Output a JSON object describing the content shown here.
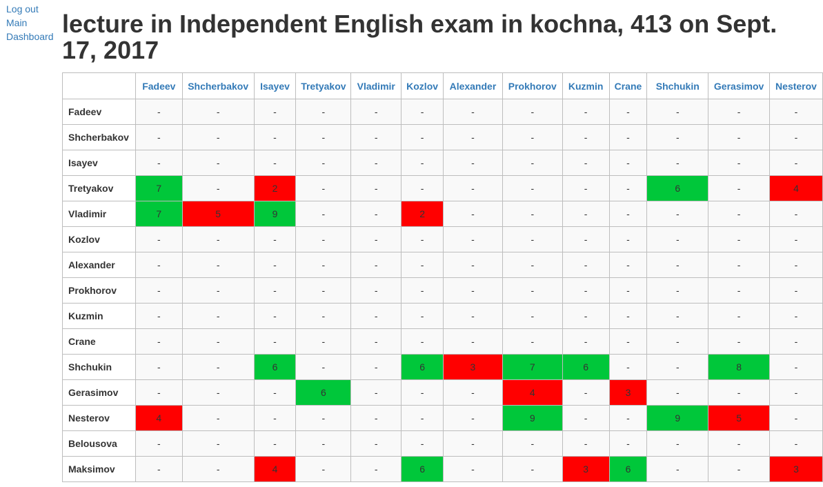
{
  "nav": {
    "logout": "Log out",
    "main": "Main",
    "dashboard": "Dashboard"
  },
  "page_title": "lecture in Independent English exam in kochna, 413 on Sept. 17, 2017",
  "colors": {
    "positive": "#00c73a",
    "negative": "#ff0000",
    "link": "#337ab7"
  },
  "columns": [
    "Fadeev",
    "Shcherbakov",
    "Isayev",
    "Tretyakov",
    "Vladimir",
    "Kozlov",
    "Alexander",
    "Prokhorov",
    "Kuzmin",
    "Crane",
    "Shchukin",
    "Gerasimov",
    "Nesterov"
  ],
  "rows": [
    {
      "name": "Fadeev",
      "cells": [
        {
          "v": "-"
        },
        {
          "v": "-"
        },
        {
          "v": "-"
        },
        {
          "v": "-"
        },
        {
          "v": "-"
        },
        {
          "v": "-"
        },
        {
          "v": "-"
        },
        {
          "v": "-"
        },
        {
          "v": "-"
        },
        {
          "v": "-"
        },
        {
          "v": "-"
        },
        {
          "v": "-"
        },
        {
          "v": "-"
        }
      ]
    },
    {
      "name": "Shcherbakov",
      "cells": [
        {
          "v": "-"
        },
        {
          "v": "-"
        },
        {
          "v": "-"
        },
        {
          "v": "-"
        },
        {
          "v": "-"
        },
        {
          "v": "-"
        },
        {
          "v": "-"
        },
        {
          "v": "-"
        },
        {
          "v": "-"
        },
        {
          "v": "-"
        },
        {
          "v": "-"
        },
        {
          "v": "-"
        },
        {
          "v": "-"
        }
      ]
    },
    {
      "name": "Isayev",
      "cells": [
        {
          "v": "-"
        },
        {
          "v": "-"
        },
        {
          "v": "-"
        },
        {
          "v": "-"
        },
        {
          "v": "-"
        },
        {
          "v": "-"
        },
        {
          "v": "-"
        },
        {
          "v": "-"
        },
        {
          "v": "-"
        },
        {
          "v": "-"
        },
        {
          "v": "-"
        },
        {
          "v": "-"
        },
        {
          "v": "-"
        }
      ]
    },
    {
      "name": "Tretyakov",
      "cells": [
        {
          "v": "7",
          "s": "green"
        },
        {
          "v": "-"
        },
        {
          "v": "2",
          "s": "red"
        },
        {
          "v": "-"
        },
        {
          "v": "-"
        },
        {
          "v": "-"
        },
        {
          "v": "-"
        },
        {
          "v": "-"
        },
        {
          "v": "-"
        },
        {
          "v": "-"
        },
        {
          "v": "6",
          "s": "green"
        },
        {
          "v": "-"
        },
        {
          "v": "4",
          "s": "red"
        }
      ]
    },
    {
      "name": "Vladimir",
      "cells": [
        {
          "v": "7",
          "s": "green"
        },
        {
          "v": "5",
          "s": "red"
        },
        {
          "v": "9",
          "s": "green"
        },
        {
          "v": "-"
        },
        {
          "v": "-"
        },
        {
          "v": "2",
          "s": "red"
        },
        {
          "v": "-"
        },
        {
          "v": "-"
        },
        {
          "v": "-"
        },
        {
          "v": "-"
        },
        {
          "v": "-"
        },
        {
          "v": "-"
        },
        {
          "v": "-"
        }
      ]
    },
    {
      "name": "Kozlov",
      "cells": [
        {
          "v": "-"
        },
        {
          "v": "-"
        },
        {
          "v": "-"
        },
        {
          "v": "-"
        },
        {
          "v": "-"
        },
        {
          "v": "-"
        },
        {
          "v": "-"
        },
        {
          "v": "-"
        },
        {
          "v": "-"
        },
        {
          "v": "-"
        },
        {
          "v": "-"
        },
        {
          "v": "-"
        },
        {
          "v": "-"
        }
      ]
    },
    {
      "name": "Alexander",
      "cells": [
        {
          "v": "-"
        },
        {
          "v": "-"
        },
        {
          "v": "-"
        },
        {
          "v": "-"
        },
        {
          "v": "-"
        },
        {
          "v": "-"
        },
        {
          "v": "-"
        },
        {
          "v": "-"
        },
        {
          "v": "-"
        },
        {
          "v": "-"
        },
        {
          "v": "-"
        },
        {
          "v": "-"
        },
        {
          "v": "-"
        }
      ]
    },
    {
      "name": "Prokhorov",
      "cells": [
        {
          "v": "-"
        },
        {
          "v": "-"
        },
        {
          "v": "-"
        },
        {
          "v": "-"
        },
        {
          "v": "-"
        },
        {
          "v": "-"
        },
        {
          "v": "-"
        },
        {
          "v": "-"
        },
        {
          "v": "-"
        },
        {
          "v": "-"
        },
        {
          "v": "-"
        },
        {
          "v": "-"
        },
        {
          "v": "-"
        }
      ]
    },
    {
      "name": "Kuzmin",
      "cells": [
        {
          "v": "-"
        },
        {
          "v": "-"
        },
        {
          "v": "-"
        },
        {
          "v": "-"
        },
        {
          "v": "-"
        },
        {
          "v": "-"
        },
        {
          "v": "-"
        },
        {
          "v": "-"
        },
        {
          "v": "-"
        },
        {
          "v": "-"
        },
        {
          "v": "-"
        },
        {
          "v": "-"
        },
        {
          "v": "-"
        }
      ]
    },
    {
      "name": "Crane",
      "cells": [
        {
          "v": "-"
        },
        {
          "v": "-"
        },
        {
          "v": "-"
        },
        {
          "v": "-"
        },
        {
          "v": "-"
        },
        {
          "v": "-"
        },
        {
          "v": "-"
        },
        {
          "v": "-"
        },
        {
          "v": "-"
        },
        {
          "v": "-"
        },
        {
          "v": "-"
        },
        {
          "v": "-"
        },
        {
          "v": "-"
        }
      ]
    },
    {
      "name": "Shchukin",
      "cells": [
        {
          "v": "-"
        },
        {
          "v": "-"
        },
        {
          "v": "6",
          "s": "green"
        },
        {
          "v": "-"
        },
        {
          "v": "-"
        },
        {
          "v": "6",
          "s": "green"
        },
        {
          "v": "3",
          "s": "red"
        },
        {
          "v": "7",
          "s": "green"
        },
        {
          "v": "6",
          "s": "green"
        },
        {
          "v": "-"
        },
        {
          "v": "-"
        },
        {
          "v": "8",
          "s": "green"
        },
        {
          "v": "-"
        }
      ]
    },
    {
      "name": "Gerasimov",
      "cells": [
        {
          "v": "-"
        },
        {
          "v": "-"
        },
        {
          "v": "-"
        },
        {
          "v": "6",
          "s": "green"
        },
        {
          "v": "-"
        },
        {
          "v": "-"
        },
        {
          "v": "-"
        },
        {
          "v": "4",
          "s": "red"
        },
        {
          "v": "-"
        },
        {
          "v": "3",
          "s": "red"
        },
        {
          "v": "-"
        },
        {
          "v": "-"
        },
        {
          "v": "-"
        }
      ]
    },
    {
      "name": "Nesterov",
      "cells": [
        {
          "v": "4",
          "s": "red"
        },
        {
          "v": "-"
        },
        {
          "v": "-"
        },
        {
          "v": "-"
        },
        {
          "v": "-"
        },
        {
          "v": "-"
        },
        {
          "v": "-"
        },
        {
          "v": "9",
          "s": "green"
        },
        {
          "v": "-"
        },
        {
          "v": "-"
        },
        {
          "v": "9",
          "s": "green"
        },
        {
          "v": "5",
          "s": "red"
        },
        {
          "v": "-"
        }
      ]
    },
    {
      "name": "Belousova",
      "cells": [
        {
          "v": "-"
        },
        {
          "v": "-"
        },
        {
          "v": "-"
        },
        {
          "v": "-"
        },
        {
          "v": "-"
        },
        {
          "v": "-"
        },
        {
          "v": "-"
        },
        {
          "v": "-"
        },
        {
          "v": "-"
        },
        {
          "v": "-"
        },
        {
          "v": "-"
        },
        {
          "v": "-"
        },
        {
          "v": "-"
        }
      ]
    },
    {
      "name": "Maksimov",
      "cells": [
        {
          "v": "-"
        },
        {
          "v": "-"
        },
        {
          "v": "4",
          "s": "red"
        },
        {
          "v": "-"
        },
        {
          "v": "-"
        },
        {
          "v": "6",
          "s": "green"
        },
        {
          "v": "-"
        },
        {
          "v": "-"
        },
        {
          "v": "3",
          "s": "red"
        },
        {
          "v": "6",
          "s": "green"
        },
        {
          "v": "-"
        },
        {
          "v": "-"
        },
        {
          "v": "3",
          "s": "red"
        }
      ]
    }
  ]
}
